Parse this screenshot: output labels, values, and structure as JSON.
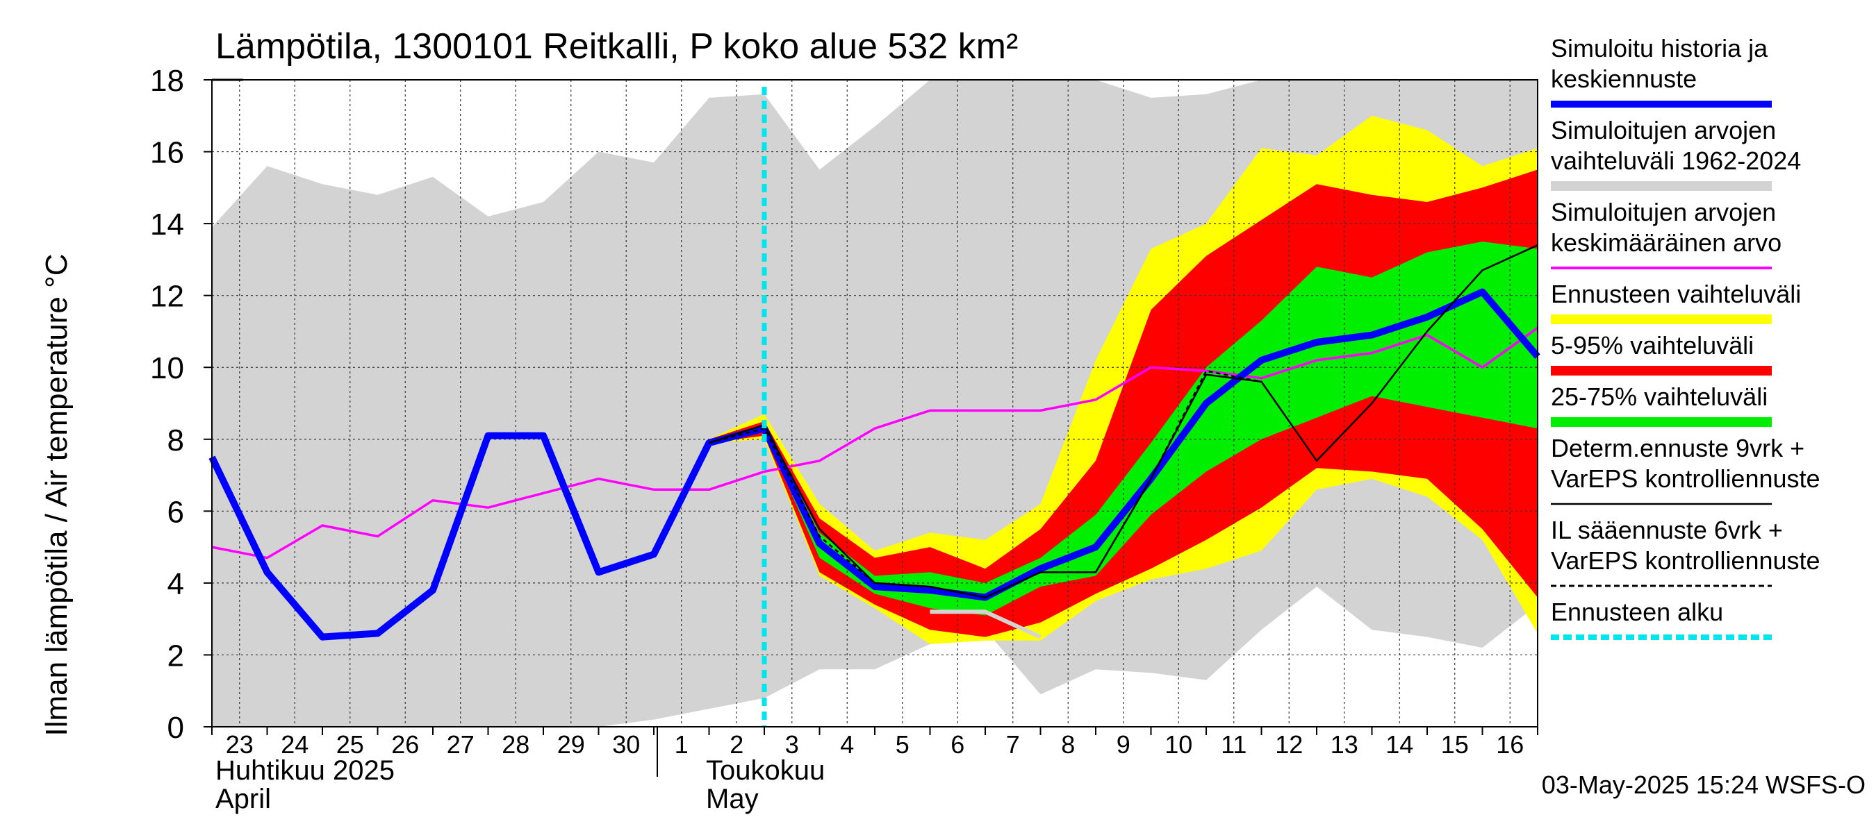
{
  "chart_data": {
    "type": "area",
    "title": "Lämpötila, 1300101 Reitkalli, P koko alue 532 km²",
    "ylabel": "Ilman lämpötila / Air temperature   °C",
    "ylim": [
      0,
      18
    ],
    "yticks": [
      "0",
      "2",
      "4",
      "6",
      "8",
      "10",
      "12",
      "14",
      "16",
      "18"
    ],
    "xlim": [
      22.5,
      46.5
    ],
    "day_labels": [
      "23",
      "24",
      "25",
      "26",
      "27",
      "28",
      "29",
      "30",
      "1",
      "2",
      "3",
      "4",
      "5",
      "6",
      "7",
      "8",
      "9",
      "10",
      "11",
      "12",
      "13",
      "14",
      "15",
      "16"
    ],
    "month_labels": [
      {
        "fi": "Huhtikuu  2025",
        "en": "April"
      },
      {
        "fi": "Toukokuu",
        "en": "May"
      }
    ],
    "forecast_start_x": 32.5,
    "footer": "03-May-2025 15:24 WSFS-O",
    "legend": [
      {
        "key": "sim",
        "lines": [
          "Simuloitu historia ja",
          "keskiennuste"
        ],
        "color": "#0000ff",
        "style": "thick"
      },
      {
        "key": "range",
        "lines": [
          "Simuloitujen arvojen",
          "vaihteluväli 1962-2024"
        ],
        "color": "#d3d3d3",
        "style": "band"
      },
      {
        "key": "mean",
        "lines": [
          "Simuloitujen arvojen",
          "keskimääräinen arvo"
        ],
        "color": "#ff00ff",
        "style": "line"
      },
      {
        "key": "ens",
        "lines": [
          "Ennusteen vaihteluväli"
        ],
        "color": "#ffff00",
        "style": "band"
      },
      {
        "key": "p5_95",
        "lines": [
          "5-95% vaihteluväli"
        ],
        "color": "#ff0000",
        "style": "band"
      },
      {
        "key": "p25_75",
        "lines": [
          "25-75% vaihteluväli"
        ],
        "color": "#00ee00",
        "style": "band"
      },
      {
        "key": "determ",
        "lines": [
          "Determ.ennuste 9vrk +",
          "VarEPS kontrolliennuste"
        ],
        "color": "#000000",
        "style": "thin"
      },
      {
        "key": "il",
        "lines": [
          "IL sääennuste 6vrk  +",
          "  VarEPS kontrolliennuste"
        ],
        "color": "#000000",
        "style": "dashed"
      },
      {
        "key": "start",
        "lines": [
          "Ennusteen alku"
        ],
        "color": "#00e5ee",
        "style": "dotted"
      }
    ],
    "series": {
      "hist_range": {
        "x": [
          22.5,
          23.5,
          24.5,
          25.5,
          26.5,
          27.5,
          28.5,
          29.5,
          30.5,
          31.5,
          32.5,
          33.5,
          34.5,
          35.5,
          36.5,
          37.5,
          38.5,
          39.5,
          40.5,
          41.5,
          42.5,
          43.5,
          44.5,
          45.5,
          46.5
        ],
        "hi": [
          13.9,
          15.6,
          15.1,
          14.8,
          15.3,
          14.2,
          14.6,
          16.0,
          15.7,
          17.5,
          17.6,
          15.5,
          16.7,
          18.0,
          18.0,
          18.0,
          18.0,
          17.5,
          17.6,
          18.0,
          18.0,
          18.0,
          18.0,
          18.0,
          18.0
        ],
        "lo": [
          0.0,
          0.0,
          0.0,
          0.0,
          0.0,
          0.0,
          0.0,
          0.0,
          0.2,
          0.5,
          0.8,
          1.6,
          1.6,
          2.3,
          2.7,
          0.9,
          1.6,
          1.5,
          1.3,
          2.7,
          3.9,
          2.7,
          2.5,
          2.2,
          3.4
        ]
      },
      "ens_range": {
        "x": [
          31.5,
          32.5,
          33.5,
          34.5,
          35.5,
          36.5,
          37.5,
          38.5,
          39.5,
          40.5,
          41.5,
          42.5,
          43.5,
          44.5,
          45.5,
          46.5
        ],
        "hi": [
          8.0,
          8.7,
          6.2,
          4.9,
          5.4,
          5.2,
          6.2,
          10.2,
          13.3,
          14.0,
          16.1,
          15.9,
          17.0,
          16.6,
          15.6,
          16.1
        ],
        "lo": [
          7.9,
          8.0,
          4.2,
          3.3,
          2.3,
          2.4,
          2.4,
          3.5,
          4.1,
          4.4,
          4.9,
          6.6,
          6.9,
          6.4,
          5.2,
          2.6
        ]
      },
      "p5_95": {
        "x": [
          31.5,
          32.5,
          33.5,
          34.5,
          35.5,
          36.5,
          37.5,
          38.5,
          39.5,
          40.5,
          41.5,
          42.5,
          43.5,
          44.5,
          45.5,
          46.5
        ],
        "hi": [
          8.0,
          8.5,
          5.8,
          4.7,
          5.0,
          4.4,
          5.5,
          7.4,
          11.6,
          13.1,
          14.1,
          15.1,
          14.8,
          14.6,
          15.0,
          15.5
        ],
        "lo": [
          7.9,
          8.1,
          4.3,
          3.4,
          2.7,
          2.5,
          2.9,
          3.7,
          4.4,
          5.2,
          6.1,
          7.2,
          7.1,
          6.9,
          5.5,
          3.6
        ]
      },
      "p25_75": {
        "x": [
          31.5,
          32.5,
          33.5,
          34.5,
          35.5,
          36.5,
          37.5,
          38.5,
          39.5,
          40.5,
          41.5,
          42.5,
          43.5,
          44.5,
          45.5,
          46.5
        ],
        "hi": [
          7.9,
          8.4,
          5.4,
          4.2,
          4.3,
          4.0,
          4.7,
          5.9,
          7.9,
          10.0,
          11.3,
          12.8,
          12.5,
          13.2,
          13.5,
          13.3
        ],
        "lo": [
          7.9,
          8.2,
          4.7,
          3.7,
          3.3,
          3.1,
          3.9,
          4.2,
          5.9,
          7.1,
          8.0,
          8.6,
          9.2,
          8.9,
          8.6,
          8.3
        ]
      },
      "mean": {
        "x": [
          22.5,
          23.5,
          24.5,
          25.5,
          26.5,
          27.5,
          28.5,
          29.5,
          30.5,
          31.5,
          32.5,
          33.5,
          34.5,
          35.5,
          36.5,
          37.5,
          38.5,
          39.5,
          40.5,
          41.5,
          42.5,
          43.5,
          44.5,
          45.5,
          46.5
        ],
        "y": [
          5.0,
          4.7,
          5.6,
          5.3,
          6.3,
          6.1,
          6.5,
          6.9,
          6.6,
          6.6,
          7.1,
          7.4,
          8.3,
          8.8,
          8.8,
          8.8,
          9.1,
          10.0,
          9.9,
          9.7,
          10.2,
          10.4,
          10.9,
          10.0,
          11.1
        ]
      },
      "simulated": {
        "x": [
          22.5,
          23.5,
          24.5,
          25.5,
          26.5,
          27.5,
          28.5,
          29.5,
          30.5,
          31.5,
          32.5,
          33.5,
          34.5,
          35.5,
          36.5,
          37.5,
          38.5,
          39.5,
          40.5,
          41.5,
          42.5,
          43.5,
          44.5,
          45.5,
          46.5
        ],
        "y": [
          7.5,
          4.3,
          2.5,
          2.6,
          3.8,
          8.1,
          8.1,
          4.3,
          4.8,
          7.9,
          8.3,
          5.1,
          3.9,
          3.8,
          3.6,
          4.4,
          5.0,
          6.9,
          9.0,
          10.2,
          10.7,
          10.9,
          11.4,
          12.1,
          10.3
        ]
      },
      "determ": {
        "x": [
          31.5,
          32.5,
          33.5,
          34.5,
          35.5,
          36.5,
          37.5,
          38.5,
          39.5,
          40.5,
          41.5,
          42.5,
          43.5,
          44.5,
          45.5,
          46.5
        ],
        "y": [
          7.9,
          8.4,
          5.5,
          4.0,
          3.9,
          3.6,
          4.3,
          4.3,
          6.9,
          9.8,
          9.6,
          7.4,
          9.0,
          11.0,
          12.7,
          13.4
        ]
      },
      "il": {
        "x": [
          31.5,
          32.5,
          33.5,
          34.5,
          35.5,
          36.5,
          37.5,
          38.5,
          39.5,
          40.5,
          41.5
        ],
        "y": [
          7.9,
          8.3,
          5.3,
          4.0,
          3.9,
          3.6,
          4.3,
          4.3,
          6.9,
          9.9,
          9.6
        ]
      },
      "observed_low": {
        "x": [
          35.5,
          36.5,
          37.5
        ],
        "y": [
          3.2,
          3.2,
          2.5
        ]
      }
    }
  }
}
